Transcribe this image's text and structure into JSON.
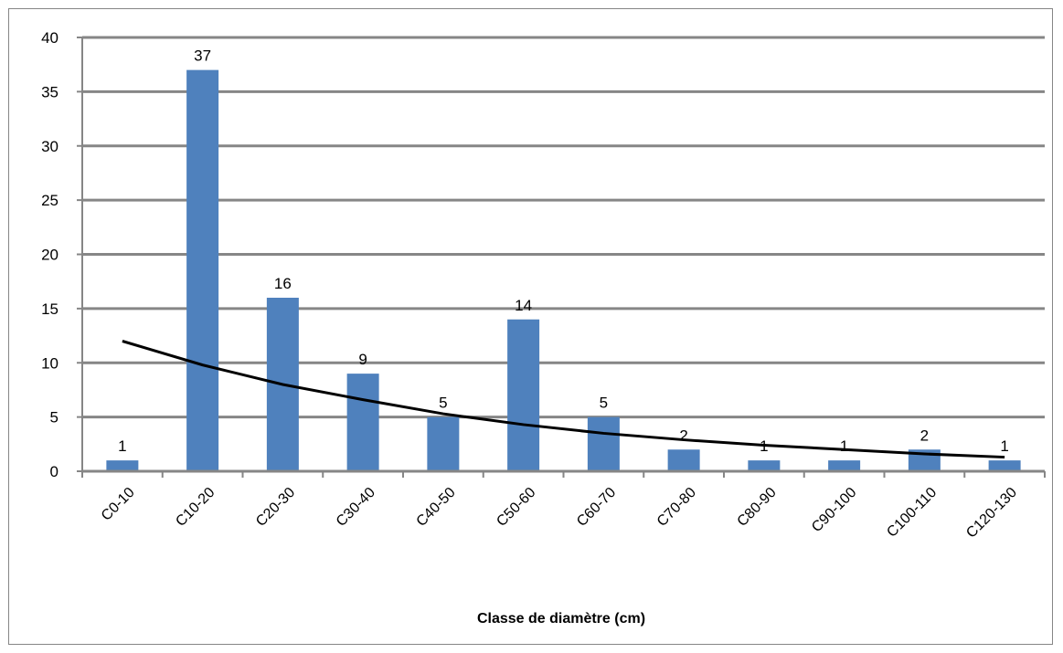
{
  "chart_data": {
    "type": "bar",
    "title": "",
    "xlabel": "Classe de diamètre (cm)",
    "ylabel": "",
    "categories": [
      "C0-10",
      "C10-20",
      "C20-30",
      "C30-40",
      "C40-50",
      "C50-60",
      "C60-70",
      "C70-80",
      "C80-90",
      "C90-100",
      "C100-110",
      "C120-130"
    ],
    "values": [
      1,
      37,
      16,
      9,
      5,
      14,
      5,
      2,
      1,
      1,
      2,
      1
    ],
    "data_labels": [
      "1",
      "37",
      "16",
      "9",
      "5",
      "14",
      "5",
      "2",
      "1",
      "1",
      "2",
      "1"
    ],
    "trendline": {
      "type": "power",
      "values": [
        12.0,
        9.8,
        8.0,
        6.6,
        5.3,
        4.3,
        3.5,
        2.9,
        2.4,
        2.0,
        1.6,
        1.3
      ]
    },
    "ylim": [
      0,
      40
    ],
    "yticks": [
      "0",
      "5",
      "10",
      "15",
      "20",
      "25",
      "30",
      "35",
      "40"
    ],
    "grid": true,
    "bar_color": "#4F81BD",
    "trendline_color": "#000000",
    "legend": "none"
  }
}
